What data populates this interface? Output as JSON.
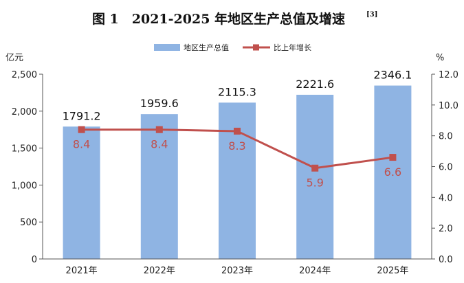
{
  "chart_data": {
    "type": "bar",
    "title": "图 1　2021-2025 年地区生产总值及增速",
    "title_note": "[3]",
    "categories": [
      "2021年",
      "2022年",
      "2023年",
      "2024年",
      "2025年"
    ],
    "series": [
      {
        "name": "地区生产总值",
        "type": "bar",
        "axis": "left",
        "color": "#8fb4e3",
        "values": [
          1791.2,
          1959.6,
          2115.3,
          2221.6,
          2346.1
        ],
        "labels": [
          "1791.2",
          "1959.6",
          "2115.3",
          "2221.6",
          "2346.1"
        ]
      },
      {
        "name": "比上年增长",
        "type": "line",
        "axis": "right",
        "color": "#c0504d",
        "values": [
          8.4,
          8.4,
          8.3,
          5.9,
          6.6
        ],
        "labels": [
          "8.4",
          "8.4",
          "8.3",
          "5.9",
          "6.6"
        ]
      }
    ],
    "y_left": {
      "unit": "亿元",
      "ylim": [
        0,
        2500
      ],
      "ticks": [
        0,
        500,
        1000,
        1500,
        2000,
        2500
      ],
      "tick_labels": [
        "0",
        "500",
        "1,000",
        "1,500",
        "2,000",
        "2,500"
      ]
    },
    "y_right": {
      "unit": "%",
      "ylim": [
        0,
        12
      ],
      "ticks": [
        0,
        2,
        4,
        6,
        8,
        10,
        12
      ],
      "tick_labels": [
        "0.0",
        "2.0",
        "4.0",
        "6.0",
        "8.0",
        "10.0",
        "12.0"
      ]
    },
    "legend_position": "top-center",
    "grid": false
  }
}
